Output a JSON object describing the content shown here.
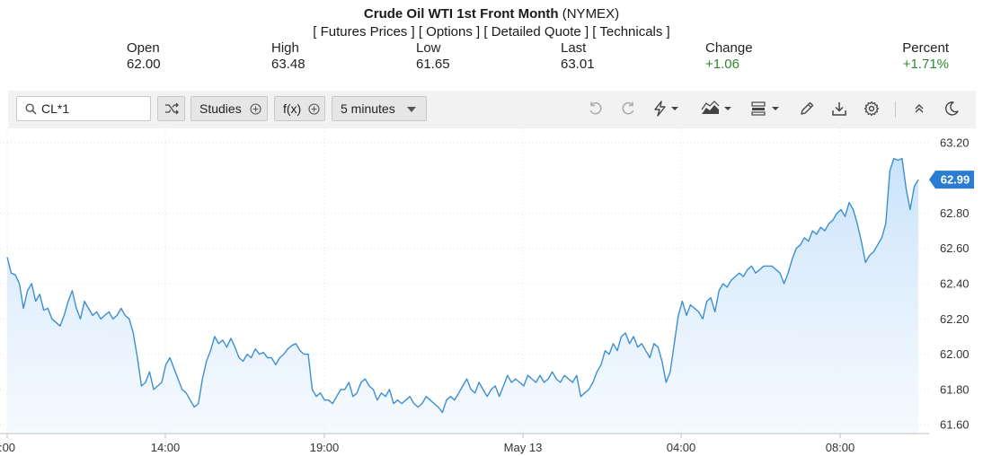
{
  "header": {
    "title_bold": "Crude Oil WTI 1st Front Month",
    "title_exchange": "(NYMEX)",
    "links": [
      "[ Futures Prices ]",
      "[ Options ]",
      "[ Detailed Quote ]",
      "[ Technicals ]"
    ]
  },
  "quote": {
    "open_label": "Open",
    "open_value": "62.00",
    "high_label": "High",
    "high_value": "63.48",
    "low_label": "Low",
    "low_value": "61.65",
    "last_label": "Last",
    "last_value": "63.01",
    "change_label": "Change",
    "change_value": "+1.06",
    "percent_label": "Percent",
    "percent_value": "+1.71%"
  },
  "toolbar": {
    "symbol_value": "CL*1",
    "studies_label": "Studies",
    "fx_label": "f(x)",
    "interval_label": "5 minutes"
  },
  "colors": {
    "line": "#3d8fd1",
    "fill": "#d4e8fb",
    "last_badge": "#2a7dd1",
    "positive": "#2f8a2f"
  },
  "chart_data": {
    "type": "area",
    "ylim": [
      61.55,
      63.25
    ],
    "y_ticks": [
      "63.20",
      "62.80",
      "62.60",
      "62.40",
      "62.20",
      "62.00",
      "61.80",
      "61.60"
    ],
    "x_ticks": [
      ":00",
      "14:00",
      "19:00",
      "May 13",
      "04:00",
      "08:00"
    ],
    "last_value": 62.99,
    "last_label": "62.99",
    "values": [
      62.55,
      62.46,
      62.45,
      62.4,
      62.26,
      62.36,
      62.4,
      62.3,
      62.34,
      62.25,
      62.26,
      62.2,
      62.18,
      62.16,
      62.22,
      62.3,
      62.36,
      62.26,
      62.2,
      62.3,
      62.26,
      62.22,
      62.24,
      62.2,
      62.22,
      62.24,
      62.2,
      62.22,
      62.26,
      62.22,
      62.2,
      62.12,
      61.98,
      61.82,
      61.84,
      61.9,
      61.8,
      61.82,
      61.84,
      61.94,
      61.98,
      61.92,
      61.86,
      61.8,
      61.78,
      61.74,
      61.7,
      61.72,
      61.86,
      61.96,
      62.02,
      62.1,
      62.06,
      62.08,
      62.04,
      62.09,
      62.04,
      61.98,
      61.96,
      62.0,
      61.98,
      62.03,
      62.0,
      62.01,
      61.98,
      61.98,
      61.94,
      61.98,
      62.0,
      62.03,
      62.05,
      62.06,
      62.02,
      62.0,
      62.0,
      61.8,
      61.76,
      61.78,
      61.74,
      61.74,
      61.72,
      61.76,
      61.8,
      61.8,
      61.84,
      61.76,
      61.78,
      61.84,
      61.86,
      61.82,
      61.8,
      61.74,
      61.78,
      61.76,
      61.8,
      61.72,
      61.74,
      61.72,
      61.74,
      61.76,
      61.72,
      61.7,
      61.72,
      61.76,
      61.74,
      61.72,
      61.7,
      61.67,
      61.74,
      61.76,
      61.74,
      61.78,
      61.82,
      61.86,
      61.8,
      61.78,
      61.84,
      61.8,
      61.76,
      61.8,
      61.82,
      61.76,
      61.82,
      61.88,
      61.84,
      61.86,
      61.84,
      61.82,
      61.88,
      61.86,
      61.84,
      61.88,
      61.84,
      61.86,
      61.9,
      61.86,
      61.84,
      61.88,
      61.86,
      61.84,
      61.88,
      61.76,
      61.78,
      61.8,
      61.84,
      61.9,
      61.94,
      62.02,
      62.0,
      62.06,
      62.02,
      62.1,
      62.12,
      62.06,
      62.1,
      62.04,
      62.06,
      62.02,
      61.98,
      62.06,
      62.04,
      61.96,
      61.84,
      61.9,
      62.06,
      62.22,
      62.3,
      62.22,
      62.28,
      62.26,
      62.24,
      62.2,
      62.3,
      62.32,
      62.24,
      62.36,
      62.4,
      62.38,
      62.42,
      62.44,
      62.46,
      62.44,
      62.48,
      62.5,
      62.46,
      62.48,
      62.5,
      62.5,
      62.5,
      62.48,
      62.46,
      62.4,
      62.46,
      62.54,
      62.6,
      62.62,
      62.66,
      62.64,
      62.7,
      62.68,
      62.72,
      62.7,
      62.74,
      62.76,
      62.8,
      62.82,
      62.78,
      62.86,
      62.82,
      62.74,
      62.64,
      62.52,
      62.56,
      62.58,
      62.62,
      62.66,
      62.74,
      63.04,
      63.11,
      63.1,
      63.11,
      62.94,
      62.82,
      62.95,
      62.99
    ]
  }
}
